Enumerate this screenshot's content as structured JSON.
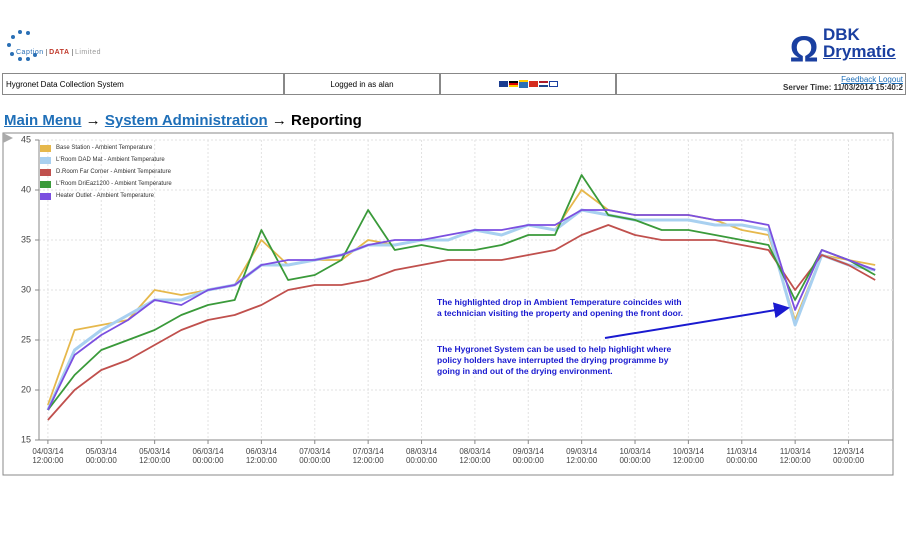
{
  "header": {
    "logo_parts": [
      "Caption",
      "DATA",
      "Limited"
    ],
    "brand_top": "DBK",
    "brand_bottom": "Drymatic"
  },
  "infobar": {
    "system": "Hygronet Data Collection System",
    "user": "Logged in as alan",
    "feedback": "Feedback",
    "logout": "Logout",
    "server_time": "Server Time: 11/03/2014 15:40:2"
  },
  "breadcrumb": {
    "items": [
      "Main Menu",
      "System Administration",
      "Reporting"
    ],
    "separator": "→"
  },
  "chart_data": {
    "type": "line",
    "x": [
      "2014-03-04T12:00",
      "2014-03-04T18:00",
      "2014-03-05T00:00",
      "2014-03-05T06:00",
      "2014-03-05T12:00",
      "2014-03-05T18:00",
      "2014-03-06T00:00",
      "2014-03-06T06:00",
      "2014-03-06T12:00",
      "2014-03-06T18:00",
      "2014-03-07T00:00",
      "2014-03-07T06:00",
      "2014-03-07T12:00",
      "2014-03-07T18:00",
      "2014-03-08T00:00",
      "2014-03-08T06:00",
      "2014-03-08T12:00",
      "2014-03-08T18:00",
      "2014-03-09T00:00",
      "2014-03-09T06:00",
      "2014-03-09T12:00",
      "2014-03-09T18:00",
      "2014-03-10T00:00",
      "2014-03-10T06:00",
      "2014-03-10T12:00",
      "2014-03-10T18:00",
      "2014-03-11T00:00",
      "2014-03-11T06:00",
      "2014-03-11T12:00",
      "2014-03-11T18:00",
      "2014-03-12T00:00",
      "2014-03-12T06:00"
    ],
    "series": [
      {
        "name": "Base Station - Ambient Temperature",
        "color": "#e6b84c",
        "values": [
          18.5,
          26,
          26.5,
          27,
          30,
          29.5,
          30,
          30.5,
          35,
          32.5,
          33,
          33,
          35,
          34.5,
          35,
          35,
          36,
          35.5,
          36.5,
          36,
          40,
          38,
          37.5,
          37.5,
          37.5,
          37,
          36,
          35.5,
          27,
          33.5,
          33,
          32.5
        ]
      },
      {
        "name": "L'Room DAD Mat - Ambient Temperature",
        "color": "#a8d0f0",
        "values": [
          18,
          24,
          26,
          27.5,
          29,
          29,
          30,
          30.5,
          32.5,
          32.5,
          33,
          33.5,
          34.5,
          34.5,
          35,
          35,
          36,
          35.5,
          36.5,
          36,
          38,
          37.5,
          37,
          37,
          37,
          36.5,
          36.5,
          36,
          26.5,
          33.5,
          32.5,
          32
        ]
      },
      {
        "name": "D.Room Far Corner - Ambient Temperature",
        "color": "#c0504d",
        "values": [
          17,
          20,
          22,
          23,
          24.5,
          26,
          27,
          27.5,
          28.5,
          30,
          30.5,
          30.5,
          31,
          32,
          32.5,
          33,
          33,
          33,
          33.5,
          34,
          35.5,
          36.5,
          35.5,
          35,
          35,
          35,
          34.5,
          34,
          30,
          33.5,
          32.5,
          31
        ]
      },
      {
        "name": "L'Room DriEaz1200 - Ambient Temperature",
        "color": "#3a9a3a",
        "values": [
          18,
          21.5,
          24,
          25,
          26,
          27.5,
          28.5,
          29,
          36,
          31,
          31.5,
          33,
          38,
          34,
          34.5,
          34,
          34,
          34.5,
          35.5,
          35.5,
          41.5,
          37.5,
          37,
          36,
          36,
          35.5,
          35,
          34.5,
          29,
          34,
          33,
          31.5
        ]
      },
      {
        "name": "Heater Outlet - Ambient Temperature",
        "color": "#7b4fe0",
        "values": [
          18,
          23.5,
          25.5,
          27,
          29,
          28.5,
          30,
          30.5,
          32.5,
          33,
          33,
          33.5,
          34.5,
          35,
          35,
          35.5,
          36,
          36,
          36.5,
          36.5,
          38,
          38,
          37.5,
          37.5,
          37.5,
          37,
          37,
          36.5,
          28,
          34,
          33,
          32
        ]
      }
    ],
    "xlim": [
      "2014-03-04T10:00",
      "2014-03-12T10:00"
    ],
    "xticks": [
      {
        "value": "2014-03-04T12:00",
        "label": "04/03/14 12:00:00"
      },
      {
        "value": "2014-03-05T00:00",
        "label": "05/03/14 00:00:00"
      },
      {
        "value": "2014-03-05T12:00",
        "label": "05/03/14 12:00:00"
      },
      {
        "value": "2014-03-06T00:00",
        "label": "06/03/14 00:00:00"
      },
      {
        "value": "2014-03-06T12:00",
        "label": "06/03/14 12:00:00"
      },
      {
        "value": "2014-03-07T00:00",
        "label": "07/03/14 00:00:00"
      },
      {
        "value": "2014-03-07T12:00",
        "label": "07/03/14 12:00:00"
      },
      {
        "value": "2014-03-08T00:00",
        "label": "08/03/14 00:00:00"
      },
      {
        "value": "2014-03-08T12:00",
        "label": "08/03/14 12:00:00"
      },
      {
        "value": "2014-03-09T00:00",
        "label": "09/03/14 00:00:00"
      },
      {
        "value": "2014-03-09T12:00",
        "label": "09/03/14 12:00:00"
      },
      {
        "value": "2014-03-10T00:00",
        "label": "10/03/14 00:00:00"
      },
      {
        "value": "2014-03-10T12:00",
        "label": "10/03/14 12:00:00"
      },
      {
        "value": "2014-03-11T00:00",
        "label": "11/03/14 00:00:00"
      },
      {
        "value": "2014-03-11T12:00",
        "label": "11/03/14 12:00:00"
      },
      {
        "value": "2014-03-12T00:00",
        "label": "12/03/14 00:00:00"
      }
    ],
    "ylim": [
      15,
      45
    ],
    "yticks": [
      15,
      20,
      25,
      30,
      35,
      40,
      45
    ],
    "grid": true,
    "legend": "top-left",
    "annotations": [
      "The highlighted drop in Ambient Temperature coincides with a technician visiting the property and opening the front door.",
      "The Hygronet System can be used to help highlight where policy holders have interrupted the drying programme by going in and out of the drying environment."
    ]
  }
}
